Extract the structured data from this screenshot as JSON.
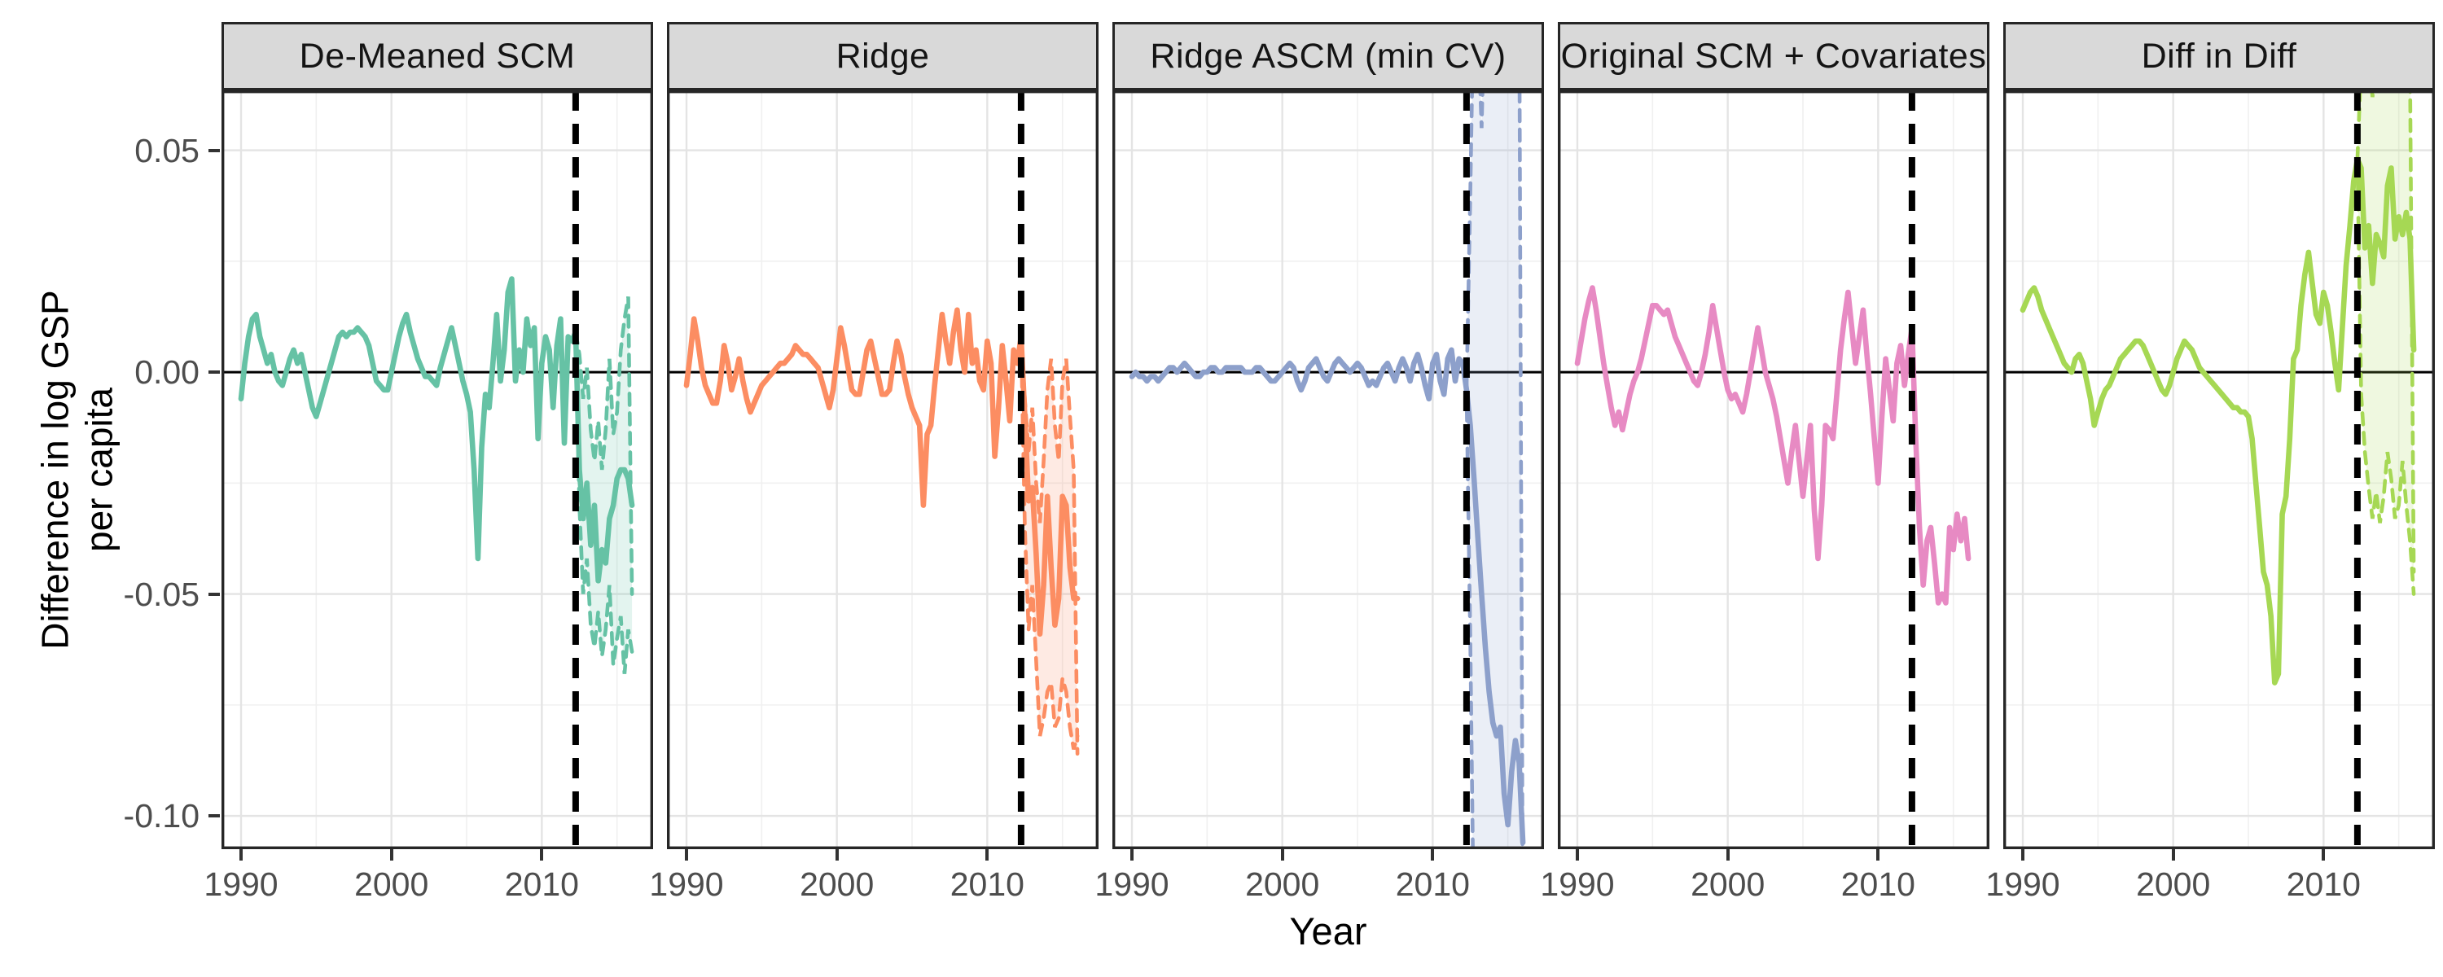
{
  "chart_data": {
    "type": "line",
    "title": "",
    "xlabel": "Year",
    "ylabel": "Difference in log GSP\nper capita",
    "x_ticks": [
      1990,
      2000,
      2010
    ],
    "x_tick_labels": [
      "1990",
      "2000",
      "2010"
    ],
    "x_minor": [
      1995,
      2005,
      2015
    ],
    "y_ticks": [
      0.05,
      0.0,
      -0.05,
      -0.1
    ],
    "y_tick_labels": [
      "0.05",
      "0.00",
      "-0.05",
      "-0.10"
    ],
    "y_minor": [
      0.025,
      -0.025,
      -0.075
    ],
    "xlim": [
      1988.7,
      2017.4
    ],
    "ylim": [
      -0.1075,
      0.0635
    ],
    "grid": true,
    "legend": "none",
    "zero_line": 0.0,
    "treatment_year": 2012.25,
    "series_x": {
      "start": 1990.0,
      "step": 0.25
    },
    "ci_x": {
      "start": 2012.25,
      "step": 0.25
    },
    "value_scale": 0.001,
    "panels": [
      {
        "label": "De-Meaned SCM",
        "color": "#66C2A5",
        "values": [
          -6,
          2,
          8,
          12,
          13,
          8,
          5,
          2,
          4,
          0,
          -2,
          -3,
          0,
          3,
          5,
          2,
          4,
          0,
          -4,
          -8,
          -10,
          -7,
          -4,
          -1,
          2,
          5,
          8,
          9,
          8,
          9,
          9,
          10,
          9,
          8,
          6,
          2,
          -2,
          -3,
          -4,
          -4,
          0,
          4,
          8,
          11,
          13,
          9,
          6,
          3,
          1,
          -1,
          -1,
          -2,
          -3,
          1,
          4,
          7,
          10,
          6,
          2,
          -2,
          -5,
          -9,
          -22,
          -42,
          -17,
          -5,
          -8,
          2,
          13,
          -2,
          5,
          18,
          21,
          -2,
          5,
          0,
          12,
          6,
          10,
          -15,
          2,
          8,
          5,
          -8,
          6,
          12,
          -16,
          8,
          7,
          9,
          -22,
          -33,
          -25,
          -39,
          -30,
          -47,
          -40,
          -43,
          -33,
          -30,
          -24,
          -22,
          -22,
          -24,
          -30
        ],
        "ci_upper": [
          9,
          4,
          -6,
          1,
          -13,
          -20,
          -11,
          -22,
          -13,
          3,
          -14,
          -9,
          5,
          12,
          17,
          -50
        ],
        "ci_lower": [
          9,
          -30,
          -50,
          -42,
          -57,
          -62,
          -54,
          -64,
          -58,
          -48,
          -66,
          -60,
          -55,
          -68,
          -58,
          -63
        ]
      },
      {
        "label": "Ridge",
        "color": "#FC8D62",
        "values": [
          -3,
          4,
          12,
          7,
          1,
          -3,
          -5,
          -7,
          -7,
          -2,
          6,
          2,
          -4,
          -1,
          3,
          -2,
          -6,
          -9,
          -7,
          -5,
          -3,
          -2,
          -1,
          0,
          1,
          2,
          2,
          3,
          4,
          6,
          5,
          4,
          4,
          3,
          2,
          1,
          -2,
          -5,
          -8,
          -4,
          3,
          10,
          6,
          1,
          -4,
          -5,
          -5,
          0,
          5,
          7,
          3,
          -1,
          -5,
          -5,
          -4,
          2,
          7,
          4,
          -1,
          -5,
          -8,
          -10,
          -12,
          -30,
          -14,
          -12,
          -3,
          5,
          13,
          7,
          2,
          9,
          14,
          5,
          0,
          13,
          2,
          5,
          -2,
          -4,
          7,
          2,
          -19,
          -8,
          6,
          -2,
          -11,
          5,
          2,
          8,
          -10,
          -29,
          -26,
          -41,
          -59,
          -48,
          -28,
          -44,
          -57,
          -51,
          -28,
          -30,
          -44,
          -51,
          -51
        ],
        "ci_upper": [
          8,
          -6,
          -18,
          -8,
          -25,
          -34,
          -20,
          -4,
          3,
          -12,
          -20,
          -2,
          3,
          -10,
          -22,
          -86
        ],
        "ci_lower": [
          8,
          -35,
          -58,
          -48,
          -65,
          -82,
          -78,
          -72,
          -70,
          -80,
          -78,
          -69,
          -72,
          -80,
          -85,
          -82
        ]
      },
      {
        "label": "Ridge ASCM (min CV)",
        "color": "#8DA0CB",
        "values": [
          -1,
          0,
          -1,
          -1,
          -2,
          -1,
          -1,
          -2,
          -1,
          0,
          1,
          1,
          0,
          1,
          2,
          1,
          0,
          -1,
          -1,
          0,
          0,
          1,
          1,
          0,
          0,
          1,
          1,
          1,
          1,
          1,
          0,
          0,
          0,
          1,
          1,
          0,
          -1,
          -2,
          -2,
          -1,
          0,
          1,
          2,
          1,
          -2,
          -4,
          -2,
          1,
          2,
          3,
          1,
          -1,
          -2,
          0,
          2,
          3,
          2,
          1,
          0,
          1,
          2,
          1,
          -1,
          -3,
          -2,
          -3,
          -1,
          1,
          2,
          0,
          -2,
          1,
          3,
          1,
          -2,
          2,
          4,
          1,
          -3,
          -6,
          2,
          4,
          -2,
          -5,
          3,
          5,
          -2,
          3,
          2,
          -4,
          -12,
          -24,
          -37,
          -50,
          -62,
          -72,
          -79,
          -82,
          -80,
          -95,
          -102,
          -90,
          -83,
          -88,
          -106
        ],
        "ci_upper": [
          -4,
          40,
          90,
          80,
          55,
          90,
          90,
          90,
          90,
          90,
          90,
          90,
          90,
          90,
          90,
          -130
        ],
        "ci_lower": [
          -4,
          -60,
          -130,
          -130,
          -130,
          -130,
          -130,
          -130,
          -130,
          -130,
          -130,
          -130,
          -130,
          -130,
          -130,
          -130
        ]
      },
      {
        "label": "Original SCM + Covariates",
        "color": "#E78AC3",
        "values": [
          2,
          7,
          12,
          16,
          19,
          14,
          8,
          2,
          -3,
          -8,
          -12,
          -9,
          -13,
          -9,
          -5,
          -2,
          0,
          3,
          7,
          11,
          15,
          15,
          14,
          13,
          14,
          11,
          8,
          6,
          4,
          2,
          0,
          -2,
          -3,
          0,
          4,
          9,
          15,
          10,
          5,
          0,
          -4,
          -6,
          -5,
          -7,
          -9,
          -5,
          0,
          5,
          10,
          5,
          0,
          -3,
          -6,
          -10,
          -15,
          -20,
          -25,
          -18,
          -12,
          -20,
          -28,
          -20,
          -12,
          -31,
          -42,
          -30,
          -12,
          -13,
          -15,
          -5,
          5,
          12,
          18,
          10,
          2,
          8,
          14,
          4,
          -5,
          -15,
          -25,
          -10,
          3,
          -4,
          -11,
          2,
          6,
          -3,
          4,
          10,
          -15,
          -35,
          -48,
          -38,
          -35,
          -43,
          -52,
          -50,
          -52,
          -35,
          -40,
          -32,
          -38,
          -33,
          -42
        ],
        "ci_upper": null,
        "ci_lower": null
      },
      {
        "label": "Diff in Diff",
        "color": "#A6D854",
        "values": [
          14,
          16,
          18,
          19,
          17,
          14,
          12,
          10,
          8,
          6,
          4,
          2,
          1,
          0,
          3,
          4,
          2,
          -2,
          -6,
          -12,
          -9,
          -6,
          -4,
          -3,
          -1,
          1,
          3,
          4,
          5,
          6,
          7,
          7,
          6,
          4,
          2,
          0,
          -2,
          -4,
          -5,
          -3,
          0,
          3,
          5,
          7,
          6,
          5,
          3,
          1,
          0,
          -1,
          -2,
          -3,
          -4,
          -5,
          -6,
          -7,
          -8,
          -8,
          -9,
          -9,
          -10,
          -15,
          -25,
          -35,
          -45,
          -48,
          -55,
          -70,
          -68,
          -32,
          -28,
          -15,
          3,
          5,
          15,
          22,
          27,
          20,
          13,
          11,
          18,
          15,
          9,
          2,
          -4,
          10,
          24,
          33,
          43,
          48,
          46,
          28,
          33,
          20,
          31,
          29,
          26,
          42,
          46,
          30,
          35,
          31,
          36,
          30,
          5
        ],
        "ci_upper": [
          48,
          70,
          64,
          72,
          62,
          70,
          68,
          72,
          66,
          70,
          64,
          70,
          63,
          70,
          68,
          -45
        ],
        "ci_lower": [
          48,
          -5,
          -18,
          -26,
          -33,
          -27,
          -34,
          -28,
          -18,
          -24,
          -33,
          -30,
          -20,
          -30,
          -38,
          -50
        ]
      }
    ]
  }
}
